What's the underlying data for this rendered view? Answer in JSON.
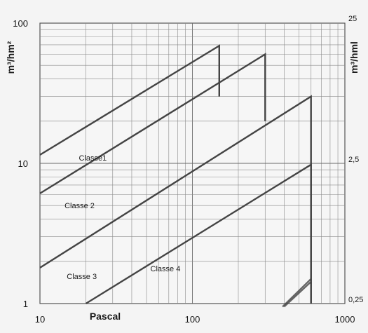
{
  "chart_data": {
    "type": "line",
    "xscale": "log",
    "yscale": "log",
    "xlim": [
      10,
      1000
    ],
    "ylim": [
      1,
      100
    ],
    "grid": true,
    "xlabel": "Pascal",
    "ylabel_left": "m³/hm²",
    "ylabel_right": "m³/hml",
    "x_ticks": [
      "10",
      "100",
      "1000"
    ],
    "y_ticks": [
      "1",
      "10",
      "100"
    ],
    "right_ticks": [
      {
        "label": "25",
        "y": 100
      },
      {
        "label": "2,5",
        "y": 10
      },
      {
        "label": "0,25",
        "y": 1
      }
    ],
    "series": [
      {
        "name": "Classe1",
        "x": [
          10,
          150,
          150
        ],
        "y": [
          11.5,
          69,
          30
        ],
        "label_at": {
          "x": 18,
          "y": 10.5
        }
      },
      {
        "name": "Classe 2",
        "x": [
          10,
          300,
          300
        ],
        "y": [
          6.1,
          60,
          20
        ],
        "label_at": {
          "x": 14.5,
          "y": 4.8
        }
      },
      {
        "name": "Classe 3",
        "x": [
          10,
          600,
          600
        ],
        "y": [
          1.8,
          30,
          1
        ],
        "label_at": {
          "x": 15,
          "y": 1.5
        }
      },
      {
        "name": "Classe 4",
        "x": [
          20,
          600,
          600
        ],
        "y": [
          1,
          9.8,
          1
        ],
        "label_at": {
          "x": 53,
          "y": 1.7
        }
      }
    ],
    "extra_segments": [
      {
        "x": [
          390,
          600
        ],
        "y": [
          0.95,
          1.5
        ]
      },
      {
        "x": [
          400,
          600
        ],
        "y": [
          0.95,
          1.43
        ]
      }
    ]
  }
}
